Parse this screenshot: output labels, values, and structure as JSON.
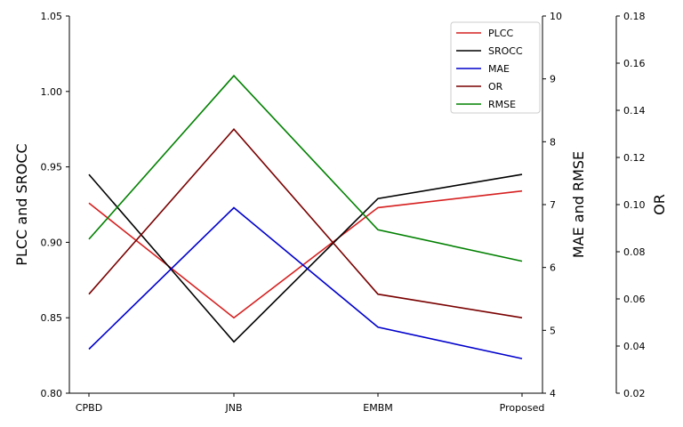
{
  "chart_data": {
    "type": "line",
    "categories": [
      "CPBD",
      "JNB",
      "EMBM",
      "Proposed"
    ],
    "axes": {
      "left": {
        "label": "PLCC and SROCC",
        "range": [
          0.8,
          1.05
        ],
        "ticks": [
          "0.80",
          "0.85",
          "0.90",
          "0.95",
          "1.00",
          "1.05"
        ]
      },
      "right": {
        "label": "MAE and RMSE",
        "range": [
          4,
          10
        ],
        "ticks": [
          "4",
          "5",
          "6",
          "7",
          "8",
          "9",
          "10"
        ]
      },
      "outer": {
        "label": "OR",
        "range": [
          0.02,
          0.18
        ],
        "ticks": [
          "0.02",
          "0.04",
          "0.06",
          "0.08",
          "0.10",
          "0.12",
          "0.14",
          "0.16",
          "0.18"
        ]
      }
    },
    "series": [
      {
        "name": "PLCC",
        "axis": "left",
        "color": "#d62020",
        "values": [
          0.926,
          0.85,
          0.923,
          0.934
        ]
      },
      {
        "name": "SROCC",
        "axis": "left",
        "color": "#000000",
        "values": [
          0.945,
          0.834,
          0.929,
          0.945
        ]
      },
      {
        "name": "MAE",
        "axis": "right",
        "color": "#0000cc",
        "values": [
          4.7,
          6.95,
          5.05,
          4.55
        ]
      },
      {
        "name": "OR",
        "axis": "outer",
        "color": "#7a0000",
        "values": [
          0.062,
          0.132,
          0.062,
          0.052
        ]
      },
      {
        "name": "RMSE",
        "axis": "right",
        "color": "#008000",
        "values": [
          6.45,
          9.05,
          6.6,
          6.1
        ]
      }
    ],
    "legend_position": "top-right",
    "grid": false
  }
}
